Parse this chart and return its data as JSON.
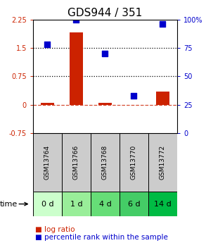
{
  "title": "GDS944 / 351",
  "categories": [
    "GSM13764",
    "GSM13766",
    "GSM13768",
    "GSM13770",
    "GSM13772"
  ],
  "time_labels": [
    "0 d",
    "1 d",
    "4 d",
    "6 d",
    "14 d"
  ],
  "log_ratio": [
    0.05,
    1.9,
    0.05,
    0.0,
    0.35
  ],
  "percentile_rank": [
    78,
    100,
    70,
    33,
    96
  ],
  "left_ylim": [
    -0.75,
    2.25
  ],
  "right_ylim": [
    0,
    100
  ],
  "left_yticks": [
    -0.75,
    0,
    0.75,
    1.5,
    2.25
  ],
  "right_yticks": [
    0,
    25,
    50,
    75,
    100
  ],
  "left_ytick_labels": [
    "-0.75",
    "0",
    "0.75",
    "1.5",
    "2.25"
  ],
  "right_ytick_labels": [
    "0",
    "25",
    "50",
    "75",
    "100%"
  ],
  "bar_color": "#cc2200",
  "dot_color": "#0000cc",
  "hline_y": [
    0.75,
    1.5
  ],
  "zero_line_y": 0,
  "bar_width": 0.45,
  "dot_size": 30,
  "gsm_bg_color": "#cccccc",
  "time_bg_colors": [
    "#ccffcc",
    "#99ee99",
    "#66dd77",
    "#44cc66",
    "#00bb44"
  ],
  "legend_log_ratio_color": "#cc2200",
  "legend_percentile_color": "#0000cc",
  "title_fontsize": 11,
  "tick_fontsize": 7,
  "label_fontsize": 8,
  "legend_fontsize": 7.5
}
